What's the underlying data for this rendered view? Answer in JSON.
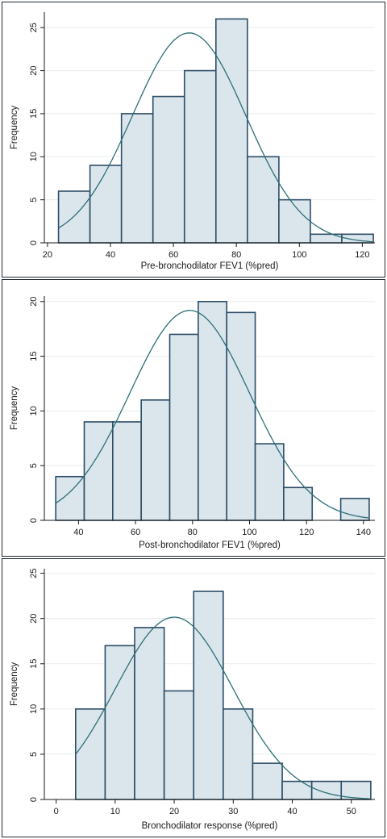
{
  "chart_data": [
    {
      "type": "bar",
      "subtype": "histogram",
      "xlabel": "Pre-bronchodilator FEV1 (%pred)",
      "ylabel": "Frequency",
      "xlim": [
        19,
        124
      ],
      "ylim": [
        0,
        26.8
      ],
      "xticks": [
        20,
        40,
        60,
        80,
        100,
        120
      ],
      "yticks": [
        0,
        5,
        10,
        15,
        20,
        25
      ],
      "bins": [
        {
          "x0": 23.5,
          "x1": 33.5,
          "value": 6
        },
        {
          "x0": 33.5,
          "x1": 43.5,
          "value": 9
        },
        {
          "x0": 43.5,
          "x1": 53.5,
          "value": 15
        },
        {
          "x0": 53.5,
          "x1": 63.5,
          "value": 17
        },
        {
          "x0": 63.5,
          "x1": 73.5,
          "value": 20
        },
        {
          "x0": 73.5,
          "x1": 83.5,
          "value": 26
        },
        {
          "x0": 83.5,
          "x1": 93.5,
          "value": 10
        },
        {
          "x0": 93.5,
          "x1": 103.5,
          "value": 5
        },
        {
          "x0": 103.5,
          "x1": 113.5,
          "value": 1
        },
        {
          "x0": 113.5,
          "x1": 123.5,
          "value": 1
        }
      ],
      "normal_curve": {
        "mean": 65,
        "sd": 18,
        "n": 110,
        "binwidth": 10,
        "x_from": 23.5,
        "x_to": 123.5
      },
      "grid": true,
      "legend": "none"
    },
    {
      "type": "bar",
      "subtype": "histogram",
      "xlabel": "Post-bronchodilator FEV1 (%pred)",
      "ylabel": "Frequency",
      "xlim": [
        28,
        144
      ],
      "ylim": [
        0,
        20.5
      ],
      "xticks": [
        40,
        60,
        80,
        100,
        120,
        140
      ],
      "yticks": [
        0,
        5,
        10,
        15,
        20
      ],
      "bins": [
        {
          "x0": 32,
          "x1": 42,
          "value": 4
        },
        {
          "x0": 42,
          "x1": 52,
          "value": 9
        },
        {
          "x0": 52,
          "x1": 62,
          "value": 9
        },
        {
          "x0": 62,
          "x1": 72,
          "value": 11
        },
        {
          "x0": 72,
          "x1": 82,
          "value": 17
        },
        {
          "x0": 82,
          "x1": 92,
          "value": 20
        },
        {
          "x0": 92,
          "x1": 102,
          "value": 19
        },
        {
          "x0": 102,
          "x1": 112,
          "value": 7
        },
        {
          "x0": 112,
          "x1": 122,
          "value": 3
        },
        {
          "x0": 132,
          "x1": 142,
          "value": 2
        }
      ],
      "normal_curve": {
        "mean": 79,
        "sd": 21,
        "n": 101,
        "binwidth": 10,
        "x_from": 32,
        "x_to": 142
      },
      "grid": true,
      "legend": "none"
    },
    {
      "type": "bar",
      "subtype": "histogram",
      "xlabel": "Bronchodilator response (%pred)",
      "ylabel": "Frequency",
      "xlim": [
        -2,
        54
      ],
      "ylim": [
        0,
        25.5
      ],
      "xticks": [
        0,
        10,
        20,
        30,
        40,
        50
      ],
      "yticks": [
        0,
        5,
        10,
        15,
        20,
        25
      ],
      "bins": [
        {
          "x0": 3.3,
          "x1": 8.3,
          "value": 10
        },
        {
          "x0": 8.3,
          "x1": 13.3,
          "value": 17
        },
        {
          "x0": 13.3,
          "x1": 18.3,
          "value": 19
        },
        {
          "x0": 18.3,
          "x1": 23.3,
          "value": 12
        },
        {
          "x0": 23.3,
          "x1": 28.3,
          "value": 23
        },
        {
          "x0": 28.3,
          "x1": 33.3,
          "value": 10
        },
        {
          "x0": 33.3,
          "x1": 38.3,
          "value": 4
        },
        {
          "x0": 38.3,
          "x1": 43.3,
          "value": 2
        },
        {
          "x0": 43.3,
          "x1": 48.3,
          "value": 2
        },
        {
          "x0": 48.3,
          "x1": 53.3,
          "value": 2
        }
      ],
      "normal_curve": {
        "mean": 20,
        "sd": 10,
        "n": 101,
        "binwidth": 5,
        "x_from": 3.3,
        "x_to": 53.3
      },
      "grid": true,
      "legend": "none"
    }
  ]
}
